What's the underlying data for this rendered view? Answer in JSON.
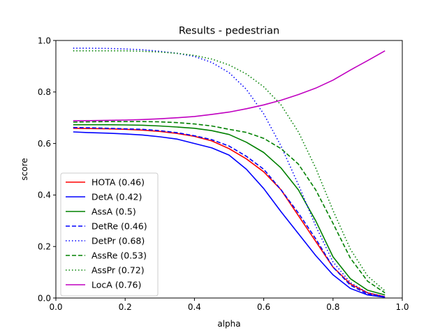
{
  "chart_data": {
    "type": "line",
    "title": "Results - pedestrian",
    "xlabel": "alpha",
    "ylabel": "score",
    "xlim": [
      0.0,
      1.0
    ],
    "ylim": [
      0.0,
      1.0
    ],
    "xticks": [
      "0.0",
      "0.2",
      "0.4",
      "0.6",
      "0.8",
      "1.0"
    ],
    "yticks": [
      "0.0",
      "0.2",
      "0.4",
      "0.6",
      "0.8",
      "1.0"
    ],
    "grid": false,
    "legend_position": "lower-left",
    "x": [
      0.05,
      0.1,
      0.15,
      0.2,
      0.25,
      0.3,
      0.35,
      0.4,
      0.45,
      0.5,
      0.55,
      0.6,
      0.65,
      0.7,
      0.75,
      0.8,
      0.85,
      0.9,
      0.95
    ],
    "series": [
      {
        "name": "HOTA (0.46)",
        "color": "#ff0000",
        "dash": "solid",
        "values": [
          0.659,
          0.658,
          0.657,
          0.655,
          0.652,
          0.647,
          0.639,
          0.628,
          0.61,
          0.58,
          0.54,
          0.49,
          0.42,
          0.32,
          0.22,
          0.12,
          0.055,
          0.02,
          0.005
        ]
      },
      {
        "name": "DetA (0.42)",
        "color": "#0000ff",
        "dash": "solid",
        "values": [
          0.645,
          0.642,
          0.64,
          0.637,
          0.633,
          0.626,
          0.617,
          0.6,
          0.583,
          0.555,
          0.5,
          0.425,
          0.335,
          0.25,
          0.165,
          0.09,
          0.037,
          0.012,
          0.003
        ]
      },
      {
        "name": "AssA (0.5)",
        "color": "#008000",
        "dash": "solid",
        "values": [
          0.673,
          0.673,
          0.673,
          0.672,
          0.671,
          0.668,
          0.664,
          0.659,
          0.65,
          0.635,
          0.605,
          0.565,
          0.505,
          0.42,
          0.3,
          0.16,
          0.075,
          0.03,
          0.012
        ]
      },
      {
        "name": "DetRe (0.46)",
        "color": "#0000ff",
        "dash": "dashed",
        "values": [
          0.662,
          0.661,
          0.659,
          0.657,
          0.655,
          0.65,
          0.642,
          0.63,
          0.615,
          0.59,
          0.55,
          0.5,
          0.42,
          0.33,
          0.23,
          0.12,
          0.05,
          0.015,
          0.004
        ]
      },
      {
        "name": "DetPr (0.68)",
        "color": "#0000ff",
        "dash": "dotted",
        "values": [
          0.97,
          0.97,
          0.969,
          0.967,
          0.964,
          0.958,
          0.95,
          0.938,
          0.915,
          0.875,
          0.81,
          0.715,
          0.59,
          0.44,
          0.28,
          0.14,
          0.06,
          0.02,
          0.005
        ]
      },
      {
        "name": "AssRe (0.53)",
        "color": "#008000",
        "dash": "dashed",
        "values": [
          0.683,
          0.684,
          0.685,
          0.685,
          0.685,
          0.684,
          0.681,
          0.676,
          0.668,
          0.655,
          0.643,
          0.62,
          0.58,
          0.52,
          0.42,
          0.29,
          0.155,
          0.065,
          0.02
        ]
      },
      {
        "name": "AssPr (0.72)",
        "color": "#008000",
        "dash": "dotted",
        "values": [
          0.96,
          0.96,
          0.96,
          0.96,
          0.958,
          0.955,
          0.95,
          0.942,
          0.928,
          0.905,
          0.87,
          0.82,
          0.75,
          0.645,
          0.505,
          0.34,
          0.19,
          0.085,
          0.028
        ]
      },
      {
        "name": "LocA (0.76)",
        "color": "#c000c0",
        "dash": "solid",
        "values": [
          0.688,
          0.689,
          0.69,
          0.691,
          0.693,
          0.696,
          0.7,
          0.705,
          0.713,
          0.722,
          0.735,
          0.75,
          0.768,
          0.79,
          0.815,
          0.846,
          0.885,
          0.922,
          0.96
        ]
      }
    ]
  }
}
